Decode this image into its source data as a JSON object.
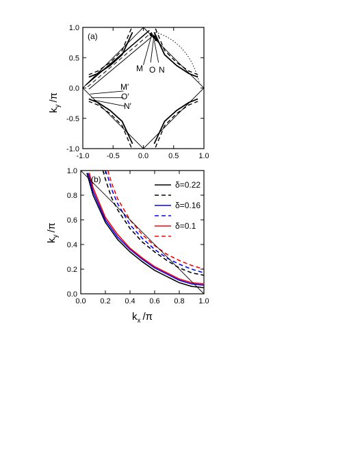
{
  "chart_data": [
    {
      "type": "line",
      "panel_label": "(a)",
      "xlim": [
        -1.0,
        1.0
      ],
      "ylim": [
        -1.0,
        1.0
      ],
      "xticks": [
        "-1.0",
        "-0.5",
        "0.0",
        "0.5",
        "1.0"
      ],
      "yticks": [
        "-1.0",
        "-0.5",
        "0.0",
        "0.5",
        "1.0"
      ],
      "xlabel": "",
      "ylabel": "k_y /π",
      "ylabel_parts": {
        "k": "k",
        "sub": "y",
        "unit": "/π"
      },
      "point_labels": [
        "M",
        "O",
        "N",
        "M′",
        "O′",
        "N′"
      ],
      "series": [
        {
          "style": "solid-thick",
          "pocket_x": [
            0.18,
            0.35,
            0.55,
            0.75,
            0.9
          ],
          "pocket_y": [
            0.92,
            0.55,
            0.37,
            0.24,
            0.18
          ]
        },
        {
          "style": "dashed",
          "pocket_x": [
            0.2,
            0.35,
            0.55,
            0.75,
            0.9
          ],
          "pocket_y": [
            0.98,
            0.62,
            0.42,
            0.28,
            0.22
          ]
        }
      ],
      "grid": false
    },
    {
      "type": "line",
      "panel_label": "(b)",
      "xlim": [
        0.0,
        1.0
      ],
      "ylim": [
        0.0,
        1.0
      ],
      "xticks": [
        "0.0",
        "0.2",
        "0.4",
        "0.6",
        "0.8",
        "1.0"
      ],
      "yticks": [
        "0.0",
        "0.2",
        "0.4",
        "0.6",
        "0.8",
        "1.0"
      ],
      "xlabel": "k_x /π",
      "xlabel_parts": {
        "k": "k",
        "sub": "x",
        "unit": "/π"
      },
      "ylabel": "k_y /π",
      "ylabel_parts": {
        "k": "k",
        "sub": "y",
        "unit": "/π"
      },
      "legend_position": "top-right",
      "legend": [
        "δ=0.22",
        "",
        "δ=0.16",
        "",
        "δ=0.1",
        ""
      ],
      "series": [
        {
          "name": "δ=0.22",
          "color": "#000000",
          "dash": false,
          "x": [
            0.05,
            0.1,
            0.2,
            0.3,
            0.4,
            0.5,
            0.6,
            0.7,
            0.8,
            0.9,
            1.0
          ],
          "y": [
            0.98,
            0.8,
            0.58,
            0.44,
            0.34,
            0.26,
            0.19,
            0.14,
            0.09,
            0.06,
            0.05
          ]
        },
        {
          "name": "",
          "color": "#000000",
          "dash": true,
          "x": [
            0.18,
            0.2,
            0.25,
            0.3,
            0.4,
            0.5,
            0.6,
            0.7,
            0.8,
            0.9,
            1.0
          ],
          "y": [
            1.0,
            0.93,
            0.78,
            0.68,
            0.53,
            0.42,
            0.34,
            0.27,
            0.21,
            0.17,
            0.15
          ]
        },
        {
          "name": "δ=0.16",
          "color": "#0000ff",
          "dash": false,
          "x": [
            0.06,
            0.1,
            0.2,
            0.3,
            0.4,
            0.5,
            0.6,
            0.7,
            0.8,
            0.9,
            1.0
          ],
          "y": [
            0.98,
            0.83,
            0.6,
            0.46,
            0.36,
            0.28,
            0.21,
            0.16,
            0.11,
            0.08,
            0.07
          ]
        },
        {
          "name": "",
          "color": "#0000ff",
          "dash": true,
          "x": [
            0.2,
            0.22,
            0.25,
            0.3,
            0.4,
            0.5,
            0.6,
            0.7,
            0.8,
            0.9,
            1.0
          ],
          "y": [
            1.0,
            0.95,
            0.85,
            0.73,
            0.56,
            0.45,
            0.36,
            0.29,
            0.24,
            0.2,
            0.17
          ]
        },
        {
          "name": "δ=0.1",
          "color": "#ff0000",
          "dash": false,
          "x": [
            0.07,
            0.1,
            0.2,
            0.3,
            0.4,
            0.5,
            0.6,
            0.7,
            0.8,
            0.9,
            1.0
          ],
          "y": [
            0.98,
            0.86,
            0.62,
            0.48,
            0.37,
            0.29,
            0.22,
            0.17,
            0.12,
            0.09,
            0.08
          ]
        },
        {
          "name": "",
          "color": "#ff0000",
          "dash": true,
          "x": [
            0.22,
            0.25,
            0.3,
            0.4,
            0.5,
            0.6,
            0.7,
            0.8,
            0.9,
            1.0
          ],
          "y": [
            1.0,
            0.9,
            0.77,
            0.6,
            0.48,
            0.39,
            0.32,
            0.27,
            0.23,
            0.2
          ]
        },
        {
          "name": "",
          "color": "#000000",
          "dash": false,
          "thin": true,
          "x": [
            0.0,
            1.0
          ],
          "y": [
            1.0,
            0.0
          ]
        }
      ],
      "grid": false
    }
  ]
}
